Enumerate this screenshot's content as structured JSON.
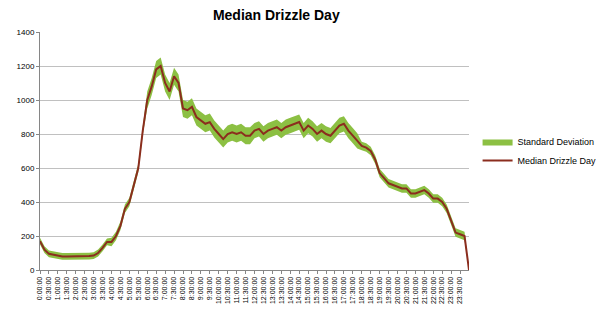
{
  "chart_data": {
    "type": "line",
    "title": "Median Drizzle Day",
    "categories": [
      "0:00:00",
      null,
      "0:30:00",
      null,
      "1:00:00",
      null,
      "1:30:00",
      null,
      "2:00:00",
      null,
      "2:30:00",
      null,
      "3:00:00",
      null,
      "3:30:00",
      null,
      "4:00:00",
      null,
      "4:30:00",
      null,
      "5:00:00",
      null,
      "5:30:00",
      null,
      "6:00:00",
      null,
      "6:30:00",
      null,
      "7:00:00",
      null,
      "7:30:00",
      null,
      "8:00:00",
      null,
      "8:30:00",
      null,
      "9:00:00",
      null,
      "9:30:00",
      null,
      "10:00:00",
      null,
      "10:30:00",
      null,
      "11:00:00",
      null,
      "11:30:00",
      null,
      "12:00:00",
      null,
      "12:30:00",
      null,
      "13:00:00",
      null,
      "13:30:00",
      null,
      "14:00:00",
      null,
      "14:30:00",
      null,
      "15:00:00",
      null,
      "15:30:00",
      null,
      "16:00:00",
      null,
      "16:30:00",
      null,
      "17:00:00",
      null,
      "17:30:00",
      null,
      "18:00:00",
      null,
      "18:30:00",
      null,
      "19:00:00",
      null,
      "19:30:00",
      null,
      "20:00:00",
      null,
      "20:30:00",
      null,
      "21:00:00",
      null,
      "21:30:00",
      null,
      "22:00:00",
      null,
      "22:30:00",
      null,
      "23:00:00",
      null,
      "23:30:00",
      null,
      null
    ],
    "series": [
      {
        "name": "Standard Deviation",
        "type": "band",
        "color": "#8cc043",
        "lower": [
          150,
          100,
          75,
          70,
          65,
          60,
          60,
          60,
          58,
          58,
          60,
          62,
          65,
          80,
          110,
          145,
          140,
          175,
          235,
          335,
          375,
          475,
          575,
          795,
          950,
          1030,
          1130,
          1150,
          1050,
          1000,
          1090,
          1050,
          900,
          890,
          910,
          850,
          830,
          810,
          820,
          780,
          750,
          720,
          750,
          760,
          750,
          760,
          740,
          740,
          775,
          785,
          755,
          775,
          785,
          795,
          775,
          795,
          805,
          815,
          825,
          775,
          805,
          785,
          755,
          775,
          755,
          745,
          775,
          805,
          815,
          775,
          745,
          715,
          705,
          695,
          675,
          625,
          545,
          515,
          485,
          475,
          465,
          455,
          455,
          425,
          425,
          435,
          445,
          425,
          395,
          395,
          375,
          335,
          265,
          195,
          185,
          175,
          0
        ],
        "upper": [
          190,
          140,
          115,
          110,
          105,
          100,
          100,
          100,
          98,
          98,
          100,
          102,
          105,
          120,
          150,
          185,
          190,
          225,
          285,
          385,
          425,
          525,
          625,
          845,
          1050,
          1130,
          1230,
          1250,
          1150,
          1100,
          1190,
          1150,
          1000,
          990,
          1010,
          950,
          930,
          910,
          920,
          880,
          850,
          820,
          850,
          860,
          850,
          860,
          840,
          840,
          865,
          875,
          845,
          865,
          875,
          885,
          865,
          885,
          895,
          905,
          915,
          865,
          895,
          875,
          845,
          865,
          845,
          835,
          865,
          895,
          905,
          865,
          835,
          805,
          755,
          745,
          725,
          675,
          595,
          565,
          535,
          525,
          515,
          505,
          505,
          475,
          475,
          485,
          495,
          475,
          445,
          445,
          425,
          385,
          315,
          245,
          235,
          225,
          0
        ]
      },
      {
        "name": "Median Drizzle Day",
        "type": "line",
        "color": "#8b2d1e",
        "values": [
          170,
          120,
          95,
          90,
          85,
          80,
          80,
          80,
          78,
          78,
          80,
          82,
          85,
          100,
          130,
          165,
          165,
          200,
          260,
          360,
          400,
          500,
          600,
          820,
          1000,
          1080,
          1180,
          1200,
          1100,
          1050,
          1140,
          1100,
          950,
          940,
          960,
          900,
          880,
          860,
          870,
          830,
          800,
          770,
          800,
          810,
          800,
          810,
          790,
          790,
          820,
          830,
          800,
          820,
          830,
          840,
          820,
          840,
          850,
          860,
          870,
          820,
          850,
          830,
          800,
          820,
          800,
          790,
          820,
          850,
          860,
          820,
          790,
          760,
          730,
          720,
          700,
          650,
          570,
          540,
          510,
          500,
          490,
          480,
          480,
          450,
          450,
          460,
          470,
          450,
          420,
          420,
          400,
          360,
          290,
          220,
          210,
          200,
          0
        ]
      }
    ],
    "ylim": [
      0,
      1400
    ],
    "yticks": [
      0,
      200,
      400,
      600,
      800,
      1000,
      1200,
      1400
    ],
    "grid": true,
    "legend": "right"
  }
}
